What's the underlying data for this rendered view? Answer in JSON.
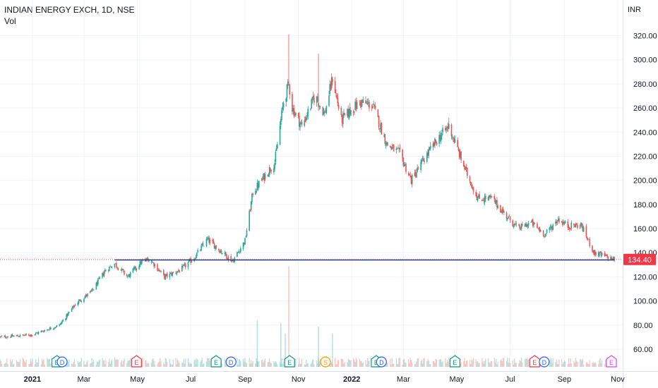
{
  "header": {
    "title": "INDIAN ENERGY EXCH, 1D, NSE",
    "indicator": "Vol",
    "currency": "INR"
  },
  "chart_data": {
    "type": "candlestick",
    "symbol": "INDIAN ENERGY EXCH",
    "interval": "1D",
    "exchange": "NSE",
    "ylim": [
      45,
      330
    ],
    "y_ticks": [
      "320.00",
      "300.00",
      "280.00",
      "260.00",
      "240.00",
      "220.00",
      "200.00",
      "180.00",
      "160.00",
      "140.00",
      "120.00",
      "100.00",
      "80.00",
      "60.00"
    ],
    "y_tick_values": [
      320,
      300,
      280,
      260,
      240,
      220,
      200,
      180,
      160,
      140,
      120,
      100,
      80,
      60
    ],
    "x_ticks": [
      "2021",
      "Mar",
      "May",
      "Jul",
      "Sep",
      "Nov",
      "2022",
      "Mar",
      "May",
      "Jul",
      "Sep",
      "Nov"
    ],
    "x_tick_dates": [
      "2021-01-01",
      "2021-03-01",
      "2021-05-01",
      "2021-07-01",
      "2021-09-01",
      "2021-11-01",
      "2022-01-01",
      "2022-03-01",
      "2022-05-01",
      "2022-07-01",
      "2022-09-01",
      "2022-11-01"
    ],
    "date_range": [
      "2020-11-25",
      "2022-10-28"
    ],
    "last_price": "134.40",
    "support_line": {
      "value": 134,
      "from": "2021-04-05",
      "to": "2022-10-28",
      "color": "#1e3a8a"
    },
    "price_path": [
      {
        "date": "2020-11-25",
        "close": 70
      },
      {
        "date": "2021-01-01",
        "close": 72
      },
      {
        "date": "2021-02-01",
        "close": 80
      },
      {
        "date": "2021-02-20",
        "close": 98
      },
      {
        "date": "2021-03-10",
        "close": 108
      },
      {
        "date": "2021-03-25",
        "close": 125
      },
      {
        "date": "2021-04-05",
        "close": 131
      },
      {
        "date": "2021-04-20",
        "close": 120
      },
      {
        "date": "2021-05-05",
        "close": 132
      },
      {
        "date": "2021-05-15",
        "close": 135
      },
      {
        "date": "2021-06-01",
        "close": 120
      },
      {
        "date": "2021-06-20",
        "close": 126
      },
      {
        "date": "2021-07-05",
        "close": 136
      },
      {
        "date": "2021-07-20",
        "close": 151
      },
      {
        "date": "2021-08-05",
        "close": 141
      },
      {
        "date": "2021-08-18",
        "close": 133
      },
      {
        "date": "2021-09-01",
        "close": 150
      },
      {
        "date": "2021-09-10",
        "close": 190
      },
      {
        "date": "2021-09-25",
        "close": 205
      },
      {
        "date": "2021-10-05",
        "close": 215
      },
      {
        "date": "2021-10-15",
        "close": 265
      },
      {
        "date": "2021-10-21",
        "close": 280
      },
      {
        "date": "2021-10-25",
        "close": 260
      },
      {
        "date": "2021-11-05",
        "close": 245
      },
      {
        "date": "2021-11-20",
        "close": 270
      },
      {
        "date": "2021-12-01",
        "close": 255
      },
      {
        "date": "2021-12-10",
        "close": 285
      },
      {
        "date": "2021-12-20",
        "close": 250
      },
      {
        "date": "2022-01-10",
        "close": 265
      },
      {
        "date": "2022-01-25",
        "close": 262
      },
      {
        "date": "2022-02-10",
        "close": 230
      },
      {
        "date": "2022-02-25",
        "close": 222
      },
      {
        "date": "2022-03-10",
        "close": 200
      },
      {
        "date": "2022-03-25",
        "close": 218
      },
      {
        "date": "2022-04-10",
        "close": 235
      },
      {
        "date": "2022-04-22",
        "close": 245
      },
      {
        "date": "2022-05-10",
        "close": 210
      },
      {
        "date": "2022-05-25",
        "close": 185
      },
      {
        "date": "2022-06-10",
        "close": 185
      },
      {
        "date": "2022-06-25",
        "close": 172
      },
      {
        "date": "2022-07-10",
        "close": 160
      },
      {
        "date": "2022-07-25",
        "close": 165
      },
      {
        "date": "2022-08-10",
        "close": 155
      },
      {
        "date": "2022-08-25",
        "close": 168
      },
      {
        "date": "2022-09-05",
        "close": 162
      },
      {
        "date": "2022-09-20",
        "close": 163
      },
      {
        "date": "2022-10-05",
        "close": 140
      },
      {
        "date": "2022-10-28",
        "close": 134.4
      }
    ],
    "volume_spikes": [
      {
        "date": "2021-10-12",
        "value": 6.5
      },
      {
        "date": "2021-10-21",
        "value": 15
      },
      {
        "date": "2021-11-24",
        "value": 6
      },
      {
        "date": "2021-12-10",
        "value": 5
      },
      {
        "date": "2021-09-15",
        "value": 7
      },
      {
        "date": "2021-10-17",
        "value": 5
      }
    ],
    "events": [
      {
        "type": "E",
        "date": "2021-01-29",
        "color": "#089981"
      },
      {
        "type": "D",
        "date": "2021-02-04",
        "color": "#2962ff"
      },
      {
        "type": "E",
        "date": "2021-04-30",
        "color": "#f23645"
      },
      {
        "type": "E",
        "date": "2021-07-30",
        "color": "#089981"
      },
      {
        "type": "D",
        "date": "2021-08-16",
        "color": "#2962ff"
      },
      {
        "type": "E",
        "date": "2021-10-22",
        "color": "#089981"
      },
      {
        "type": "S",
        "date": "2021-12-02",
        "color": "#ff9800"
      },
      {
        "type": "E",
        "date": "2022-01-29",
        "color": "#089981"
      },
      {
        "type": "D",
        "date": "2022-02-04",
        "color": "#2962ff"
      },
      {
        "type": "E",
        "date": "2022-04-29",
        "color": "#089981"
      },
      {
        "type": "E",
        "date": "2022-07-29",
        "color": "#f23645"
      },
      {
        "type": "D",
        "date": "2022-08-09",
        "color": "#2962ff"
      },
      {
        "type": "E",
        "date": "2022-10-28",
        "color": "#e040fb"
      }
    ],
    "colors": {
      "up": "#26a69a",
      "down": "#ef5350",
      "grid": "#f0f3fa",
      "axis_text": "#131722",
      "price_tag": "#f23645"
    }
  }
}
